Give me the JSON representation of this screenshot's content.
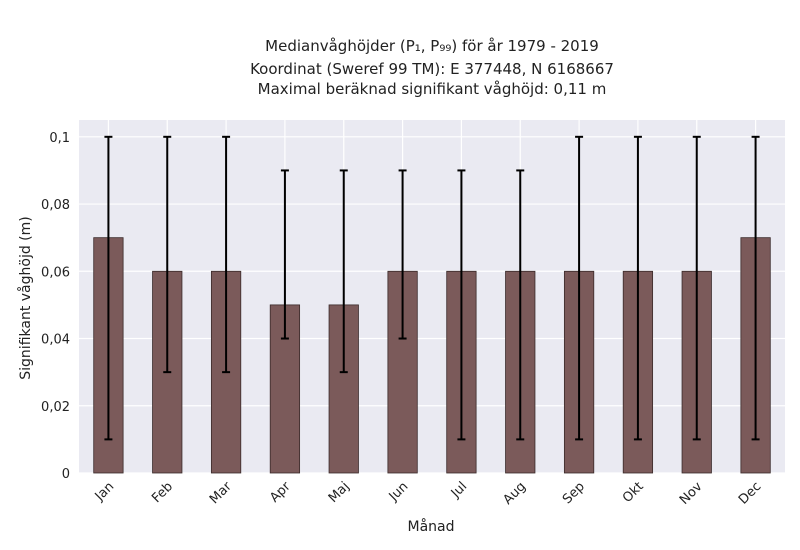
{
  "chart_data": {
    "type": "bar",
    "title_lines": [
      "Medianvåghöjder (P₁, P₉₉) för år 1979 - 2019",
      "Koordinat (Sweref 99 TM): E 377448, N 6168667",
      "Maximal beräknad signifikant våghöjd: 0,11 m"
    ],
    "xlabel": "Månad",
    "ylabel": "Signifikant våghöjd (m)",
    "categories": [
      "Jan",
      "Feb",
      "Mar",
      "Apr",
      "Maj",
      "Jun",
      "Jul",
      "Aug",
      "Sep",
      "Okt",
      "Nov",
      "Dec"
    ],
    "values": [
      0.07,
      0.06,
      0.06,
      0.05,
      0.05,
      0.06,
      0.06,
      0.06,
      0.06,
      0.06,
      0.06,
      0.07
    ],
    "p1": [
      0.01,
      0.03,
      0.03,
      0.04,
      0.03,
      0.04,
      0.01,
      0.01,
      0.01,
      0.01,
      0.01,
      0.01
    ],
    "p99": [
      0.1,
      0.1,
      0.1,
      0.09,
      0.09,
      0.09,
      0.09,
      0.09,
      0.1,
      0.1,
      0.1,
      0.1
    ],
    "ylim": [
      0,
      0.105
    ],
    "yticks": [
      0,
      0.02,
      0.04,
      0.06,
      0.08,
      0.1
    ],
    "ytick_labels": [
      "0",
      "0,02",
      "0,04",
      "0,06",
      "0,08",
      "0,1"
    ],
    "grid": true,
    "colors": {
      "bar": "#7b5a5a",
      "bar_edge": "#3a2a2a",
      "error": "#000000",
      "background": "#eaeaf2",
      "grid": "#ffffff"
    }
  }
}
